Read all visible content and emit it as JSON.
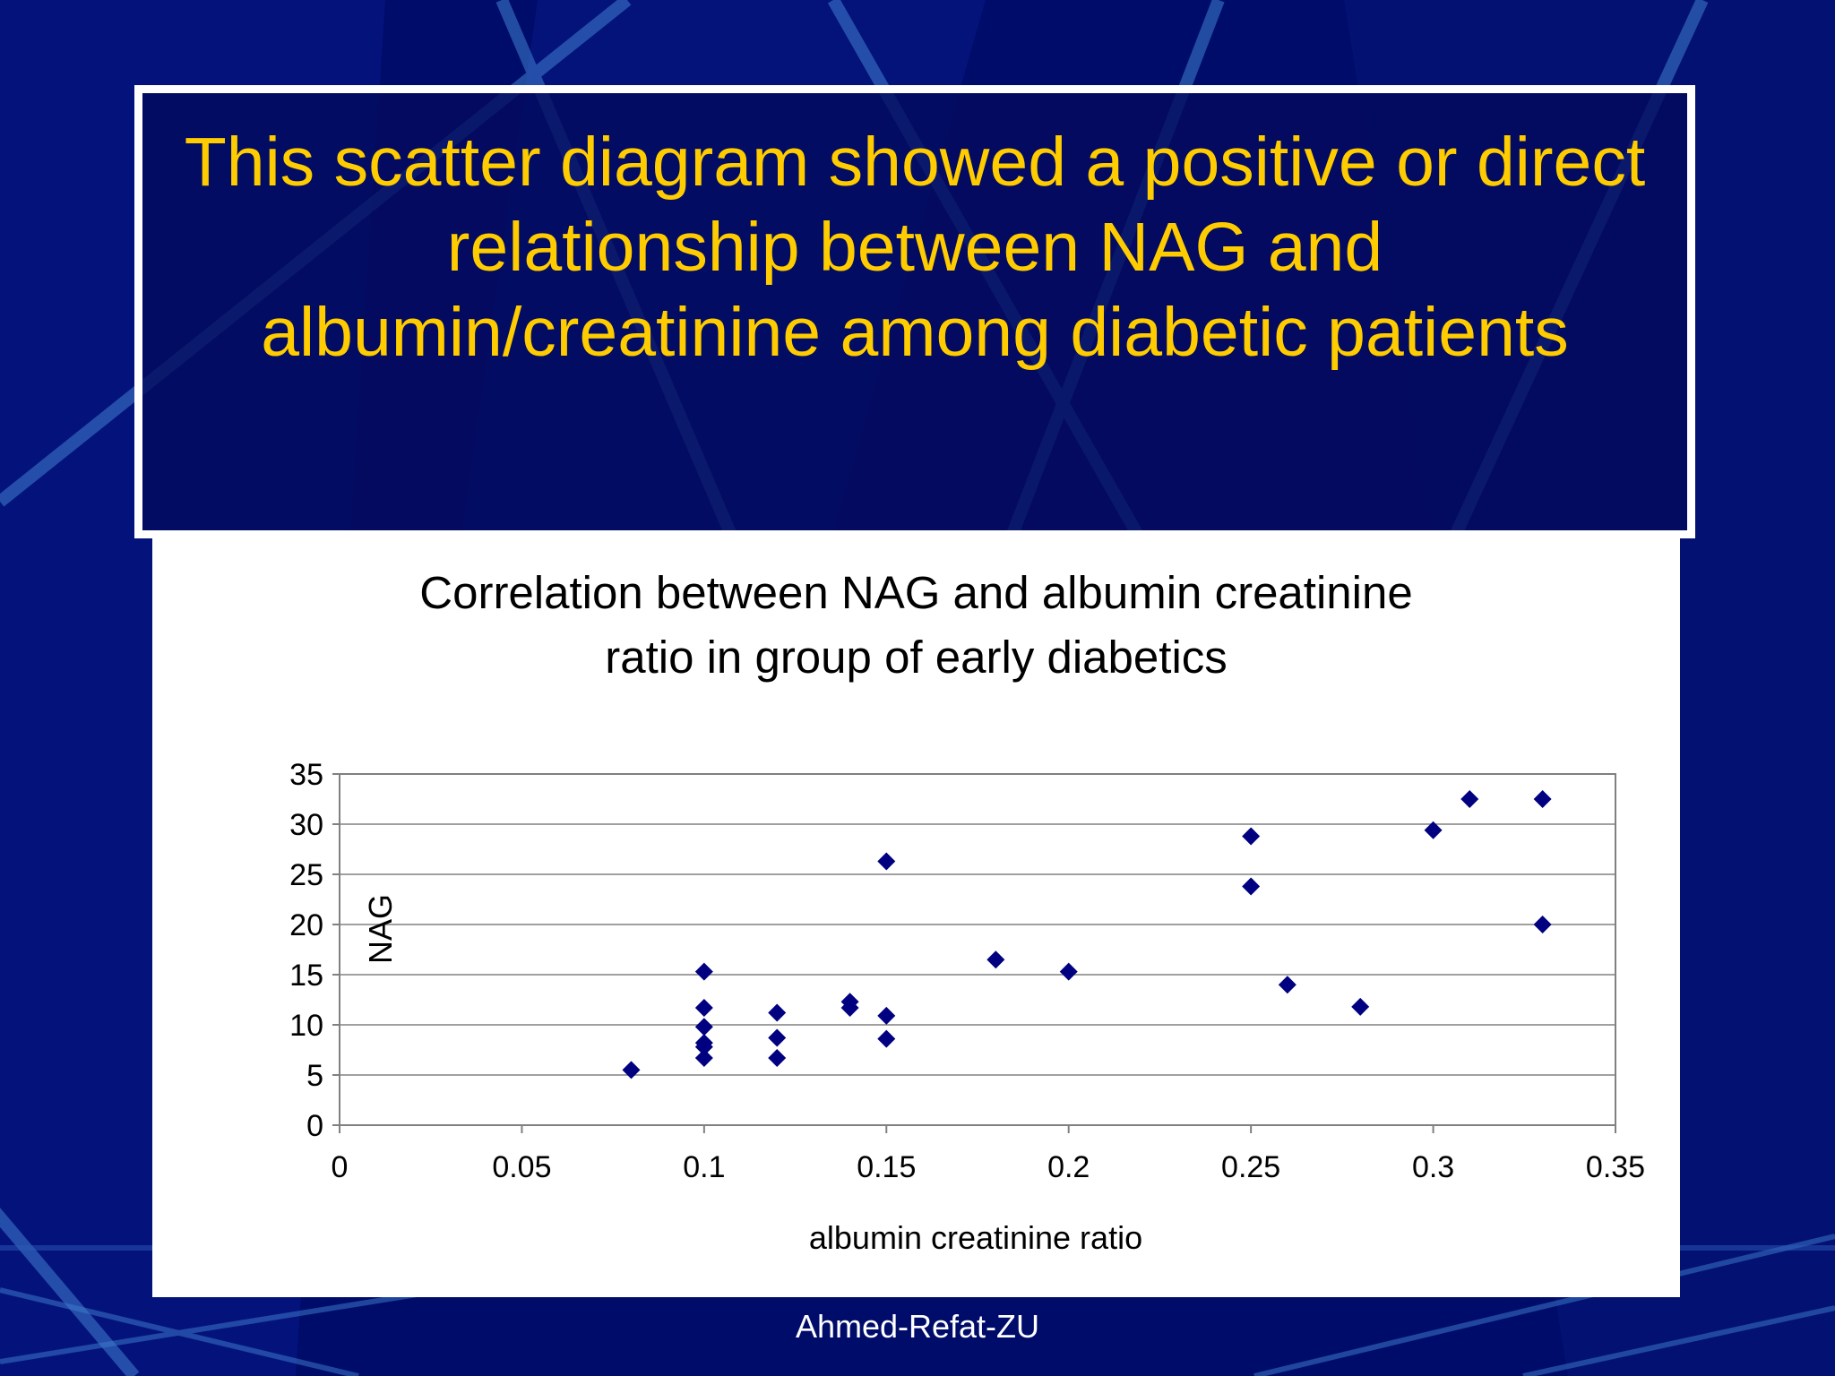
{
  "slide": {
    "title_lines": [
      "This scatter diagram showed a positive or direct",
      "relationship between NAG and",
      "albumin/creatinine among diabetic patients"
    ],
    "footer": "Ahmed-Refat-ZU"
  },
  "colors": {
    "background": "#000c6a",
    "title_text": "#ffcc00",
    "marker": "#000080"
  },
  "chart_data": {
    "type": "scatter",
    "title_lines": [
      "Correlation between NAG and albumin creatinine",
      "ratio in group of early diabetics"
    ],
    "xlabel": "albumin creatinine ratio",
    "ylabel": "NAG",
    "xlim": [
      0,
      0.35
    ],
    "ylim": [
      0,
      35
    ],
    "x_ticks": [
      "0",
      "0.05",
      "0.1",
      "0.15",
      "0.2",
      "0.25",
      "0.3",
      "0.35"
    ],
    "y_ticks": [
      "0",
      "5",
      "10",
      "15",
      "20",
      "25",
      "30",
      "35"
    ],
    "grid": "horizontal",
    "legend": "none",
    "marker": "diamond",
    "points": [
      {
        "x": 0.08,
        "y": 5.5
      },
      {
        "x": 0.1,
        "y": 6.7
      },
      {
        "x": 0.1,
        "y": 7.8
      },
      {
        "x": 0.1,
        "y": 8.2
      },
      {
        "x": 0.1,
        "y": 9.8
      },
      {
        "x": 0.1,
        "y": 11.7
      },
      {
        "x": 0.1,
        "y": 15.3
      },
      {
        "x": 0.12,
        "y": 6.7
      },
      {
        "x": 0.12,
        "y": 8.7
      },
      {
        "x": 0.12,
        "y": 11.2
      },
      {
        "x": 0.14,
        "y": 11.7
      },
      {
        "x": 0.14,
        "y": 12.3
      },
      {
        "x": 0.15,
        "y": 8.6
      },
      {
        "x": 0.15,
        "y": 10.9
      },
      {
        "x": 0.15,
        "y": 26.3
      },
      {
        "x": 0.18,
        "y": 16.5
      },
      {
        "x": 0.2,
        "y": 15.3
      },
      {
        "x": 0.25,
        "y": 23.8
      },
      {
        "x": 0.25,
        "y": 28.8
      },
      {
        "x": 0.26,
        "y": 14.0
      },
      {
        "x": 0.28,
        "y": 11.8
      },
      {
        "x": 0.3,
        "y": 29.4
      },
      {
        "x": 0.31,
        "y": 32.5
      },
      {
        "x": 0.33,
        "y": 32.5
      },
      {
        "x": 0.33,
        "y": 20.0
      }
    ]
  }
}
